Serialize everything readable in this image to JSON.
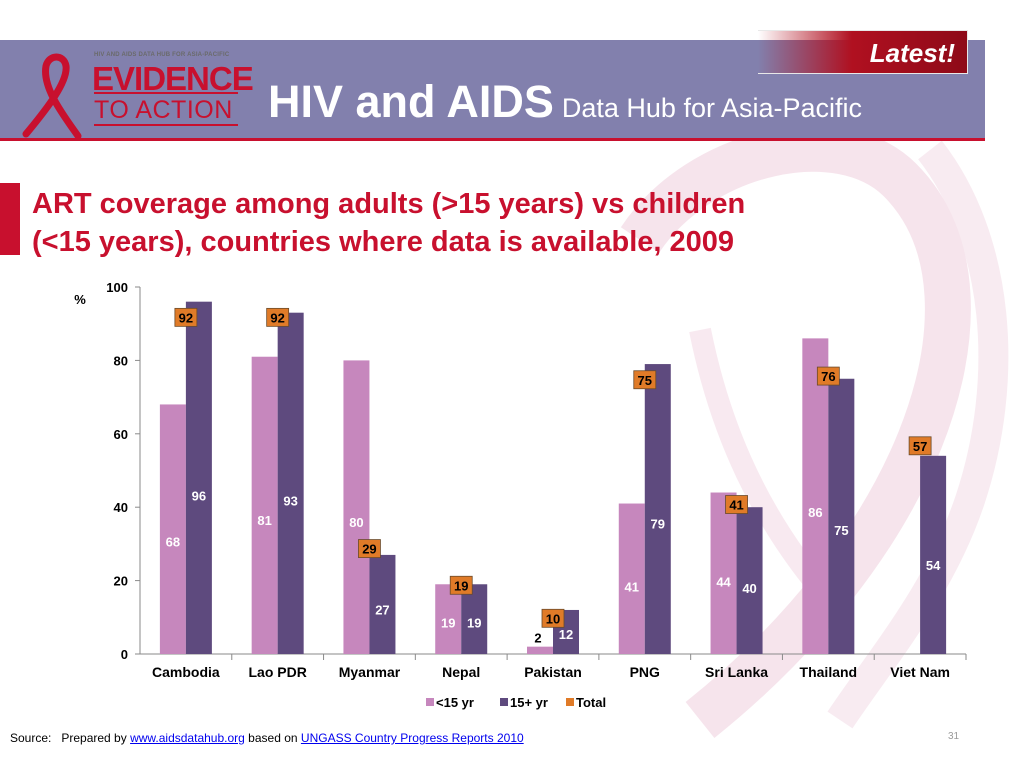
{
  "header": {
    "logo": {
      "tagline": "HIV AND AIDS DATA HUB FOR ASIA-PACIFIC",
      "line1": "EVIDENCE",
      "line2": "TO ACTION"
    },
    "title_main": "HIV and AIDS",
    "title_sub": "Data Hub for Asia-Pacific",
    "latest_label": "Latest!"
  },
  "slide": {
    "title_line1": "ART coverage among adults (>15 years) vs children",
    "title_line2": "(<15 years), countries where data is available, 2009"
  },
  "chart_data": {
    "type": "bar",
    "title": "",
    "ylabel": "%",
    "xlabel": "",
    "ylim": [
      0,
      100
    ],
    "yticks": [
      0,
      20,
      40,
      60,
      80,
      100
    ],
    "grid": false,
    "legend_position": "bottom",
    "categories": [
      "Cambodia",
      "Lao PDR",
      "Myanmar",
      "Nepal",
      "Pakistan",
      "PNG",
      "Sri Lanka",
      "Thailand",
      "Viet Nam"
    ],
    "series": [
      {
        "name": "<15 yr",
        "color": "#c687bd",
        "values": [
          68,
          81,
          80,
          19,
          2,
          41,
          44,
          86,
          null
        ]
      },
      {
        "name": "15+ yr",
        "color": "#5e4a7e",
        "values": [
          96,
          93,
          27,
          19,
          12,
          79,
          40,
          75,
          54
        ]
      },
      {
        "name": "Total",
        "color": "#e07b28",
        "values": [
          92,
          92,
          29,
          19,
          10,
          75,
          41,
          76,
          57
        ]
      }
    ]
  },
  "footer": {
    "source_label": "Source:",
    "prepared_by": "Prepared by",
    "link1": "www.aidsdatahub.org",
    "based_on": "based on",
    "link2": "UNGASS Country Progress Reports 2010",
    "page_number": "31"
  }
}
